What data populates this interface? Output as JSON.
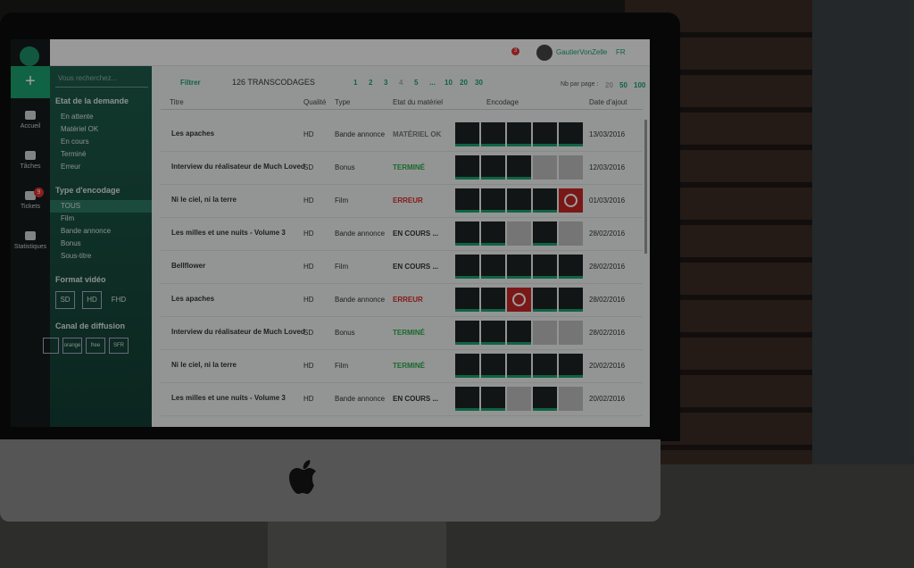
{
  "header": {
    "notifications": "3",
    "user": "GautierVonZelle",
    "lang": "FR"
  },
  "nav": [
    {
      "label": "Accueil"
    },
    {
      "label": "Tâches"
    },
    {
      "label": "Tickets",
      "badge": "9"
    },
    {
      "label": "Statistiques"
    }
  ],
  "filters": {
    "search_placeholder": "Vous recherchez...",
    "sections": [
      {
        "title": "Etat de la demande",
        "items": [
          "En attente",
          "Matériel OK",
          "En cours",
          "Terminé",
          "Erreur"
        ]
      },
      {
        "title": "Type d'encodage",
        "items": [
          "TOUS",
          "Film",
          "Bande annonce",
          "Bonus",
          "Sous-titre"
        ],
        "selected": 0
      }
    ],
    "format": {
      "title": "Format vidéo",
      "items": [
        "SD",
        "HD",
        "FHD"
      ]
    },
    "channels": {
      "title": "Canal de diffusion",
      "items": [
        "orange",
        "free",
        "SFR"
      ]
    }
  },
  "toolbar": {
    "filter": "Filtrer",
    "count": "126 TRANSCODAGES",
    "pages": [
      "1",
      "2",
      "3",
      "4",
      "5",
      "...",
      "10",
      "20",
      "30"
    ],
    "per_page_label": "Nb par page :",
    "per_page": [
      "20",
      "50",
      "100"
    ]
  },
  "table": {
    "columns": [
      "Titre",
      "Qualité",
      "Type",
      "Etat du matériel",
      "Encodage",
      "Date d'ajout"
    ],
    "rows": [
      {
        "title": "Les apaches",
        "quality": "HD",
        "type": "Bande annonce",
        "state": "MATÉRIEL OK",
        "state_color": "#777",
        "tiles": [
          "ok",
          "ok",
          "ok",
          "ok",
          "ok"
        ],
        "date": "13/03/2016"
      },
      {
        "title": "Interview du réalisateur de Much Loved",
        "quality": "SD",
        "type": "Bonus",
        "state": "TERMINÉ",
        "state_color": "#2aa84a",
        "tiles": [
          "ok",
          "ok",
          "ok",
          "off",
          "off"
        ],
        "date": "12/03/2016"
      },
      {
        "title": "Ni le ciel, ni la terre",
        "quality": "HD",
        "type": "Film",
        "state": "ERREUR",
        "state_color": "#d62a2a",
        "tiles": [
          "ok",
          "ok",
          "ok",
          "ok",
          "error"
        ],
        "date": "01/03/2016"
      },
      {
        "title": "Les milles et une nuits - Volume 3",
        "quality": "HD",
        "type": "Bande annonce",
        "state": "EN COURS ...",
        "state_color": "#333",
        "tiles": [
          "ok",
          "ok",
          "off",
          "ok",
          "off"
        ],
        "date": "28/02/2016"
      },
      {
        "title": "Bellflower",
        "quality": "HD",
        "type": "Film",
        "state": "EN COURS ...",
        "state_color": "#333",
        "tiles": [
          "ok",
          "ok",
          "ok",
          "ok",
          "ok"
        ],
        "date": "28/02/2016"
      },
      {
        "title": "Les apaches",
        "quality": "HD",
        "type": "Bande annonce",
        "state": "ERREUR",
        "state_color": "#d62a2a",
        "tiles": [
          "ok",
          "ok",
          "error",
          "ok",
          "ok"
        ],
        "date": "28/02/2016"
      },
      {
        "title": "Interview du réalisateur de Much Loved",
        "quality": "SD",
        "type": "Bonus",
        "state": "TERMINÉ",
        "state_color": "#2aa84a",
        "tiles": [
          "ok",
          "ok",
          "ok",
          "off",
          "off"
        ],
        "date": "28/02/2016"
      },
      {
        "title": "Ni le ciel, ni la terre",
        "quality": "HD",
        "type": "Film",
        "state": "TERMINÉ",
        "state_color": "#2aa84a",
        "tiles": [
          "ok",
          "ok",
          "ok",
          "ok",
          "ok"
        ],
        "date": "20/02/2016"
      },
      {
        "title": "Les milles et une nuits - Volume 3",
        "quality": "HD",
        "type": "Bande annonce",
        "state": "EN COURS ...",
        "state_color": "#333",
        "tiles": [
          "ok",
          "ok",
          "off",
          "ok",
          "off"
        ],
        "date": "20/02/2016"
      }
    ]
  }
}
